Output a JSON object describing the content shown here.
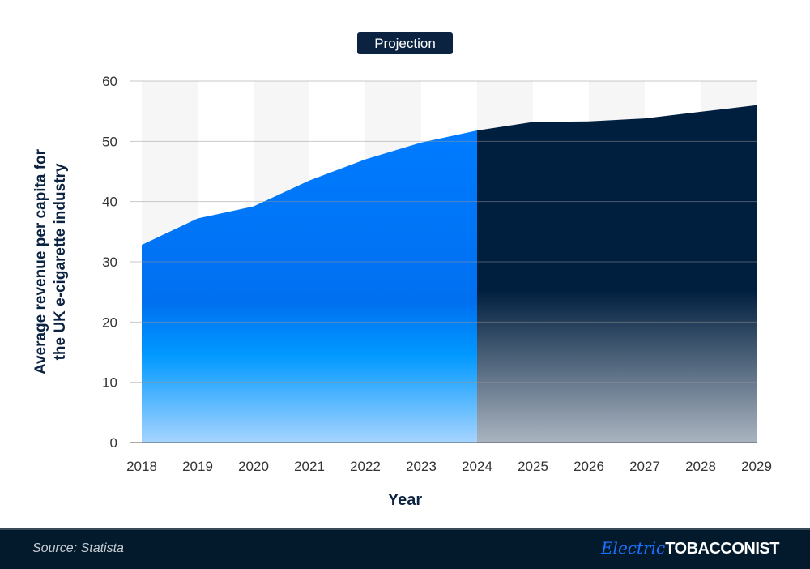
{
  "chart_data": {
    "type": "area",
    "annotation": "Projection",
    "xlabel": "Year",
    "ylabel": "Average revenue per capita for the UK e-cigarette industry",
    "ylim": [
      0,
      60
    ],
    "yticks": [
      0,
      10,
      20,
      30,
      40,
      50,
      60
    ],
    "categories": [
      "2018",
      "2019",
      "2020",
      "2021",
      "2022",
      "2023",
      "2024",
      "2025",
      "2026",
      "2027",
      "2028",
      "2029"
    ],
    "values": [
      32.8,
      37.2,
      39.2,
      43.5,
      47.0,
      49.8,
      51.8,
      53.2,
      53.3,
      53.8,
      54.9,
      56.0
    ],
    "projection_start": "2024",
    "grid": "horizontal",
    "colors": {
      "actual": "#007bff",
      "projection": "#001f3f",
      "label_bg": "#0b2341"
    }
  },
  "footer": {
    "source": "Source: Statista",
    "logo_script": "Electric",
    "logo_text": "TOBACCONIST"
  }
}
